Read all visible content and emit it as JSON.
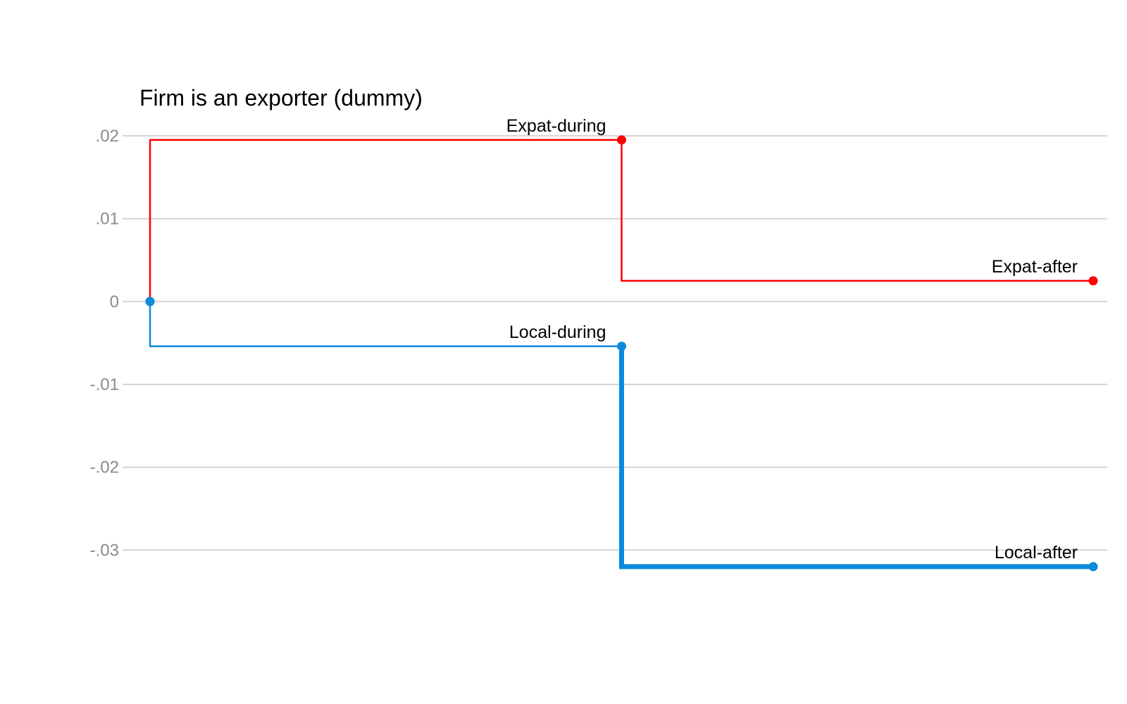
{
  "chart_data": {
    "type": "line",
    "step": true,
    "title": "Firm is an exporter (dummy)",
    "xlabel": "",
    "ylabel": "",
    "ylim": [
      -0.036,
      0.0205
    ],
    "grid": true,
    "yticks": [
      {
        "value": 0.02,
        "label": ".02"
      },
      {
        "value": 0.01,
        "label": ".01"
      },
      {
        "value": 0,
        "label": "0"
      },
      {
        "value": -0.01,
        "label": "-.01"
      },
      {
        "value": -0.02,
        "label": "-.02"
      },
      {
        "value": -0.03,
        "label": "-.03"
      }
    ],
    "x": [
      0,
      1,
      2
    ],
    "series": [
      {
        "color": "#ff0000",
        "values": [
          0,
          0.0195,
          0.0025
        ],
        "segment_widths": [
          2.5,
          2.5
        ],
        "point_labels": [
          "",
          "Expat-during",
          "Expat-after"
        ]
      },
      {
        "color": "#0a8bdb",
        "values": [
          0,
          -0.0054,
          -0.032
        ],
        "segment_widths": [
          2.5,
          7
        ],
        "point_labels": [
          "",
          "Local-during",
          "Local-after"
        ]
      }
    ]
  }
}
